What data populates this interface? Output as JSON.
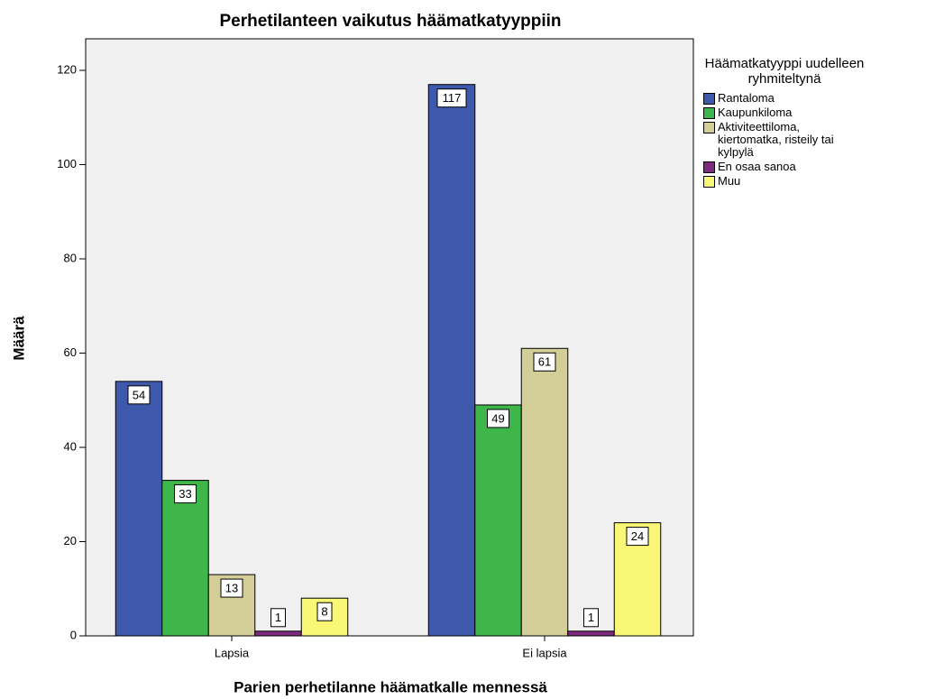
{
  "chart_data": {
    "type": "bar",
    "title": "Perhetilanteen vaikutus häämatkatyyppiin",
    "x_label": "Parien perhetilanne häämatkalle mennessä",
    "y_label": "Määrä",
    "legend_title": "Häämatkatyyppi uudelleen ryhmiteltynä",
    "categories": [
      "Lapsia",
      "Ei lapsia"
    ],
    "series": [
      {
        "name": "Rantaloma",
        "color": "#3e58ac",
        "values": [
          54,
          117
        ]
      },
      {
        "name": "Kaupunkiloma",
        "color": "#3fb64a",
        "values": [
          33,
          49
        ]
      },
      {
        "name": "Aktiviteettiloma, kiertomatka, risteily tai kylpylä",
        "color": "#d3ce97",
        "values": [
          13,
          61
        ]
      },
      {
        "name": "En osaa sanoa",
        "color": "#7e2a7e",
        "values": [
          1,
          1
        ]
      },
      {
        "name": "Muu",
        "color": "#fbf776",
        "values": [
          8,
          24
        ]
      }
    ],
    "ylim": [
      0,
      126.7
    ],
    "yticks": [
      0,
      20,
      40,
      60,
      80,
      100,
      120
    ],
    "legend": "right"
  }
}
